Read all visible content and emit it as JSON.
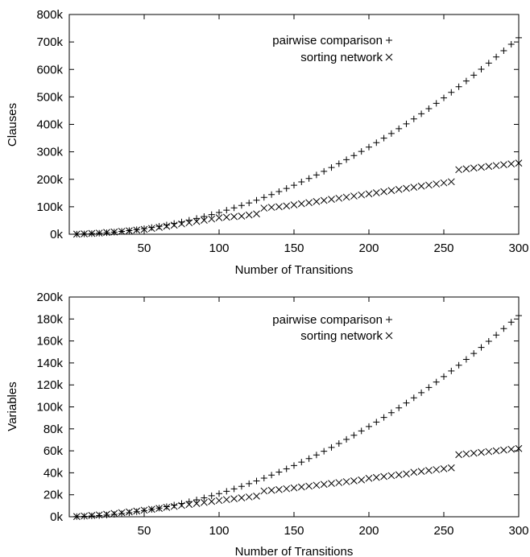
{
  "chart_data": [
    {
      "type": "scatter",
      "xlabel": "Number of Transitions",
      "ylabel": "Clauses",
      "xlim": [
        0,
        300
      ],
      "ylim": [
        0,
        800000
      ],
      "xticks": [
        50,
        100,
        150,
        200,
        250,
        300
      ],
      "xtick_labels": [
        "50",
        "100",
        "150",
        "200",
        "250",
        "300"
      ],
      "yticks": [
        0,
        100000,
        200000,
        300000,
        400000,
        500000,
        600000,
        700000,
        800000
      ],
      "ytick_labels": [
        "0k",
        "100k",
        "200k",
        "300k",
        "400k",
        "500k",
        "600k",
        "700k",
        "800k"
      ],
      "grid": false,
      "legend_position": "top-right",
      "series": [
        {
          "name": "pairwise comparison",
          "marker": "plus",
          "x": [
            5,
            10,
            15,
            20,
            25,
            30,
            35,
            40,
            45,
            50,
            55,
            60,
            65,
            70,
            75,
            80,
            85,
            90,
            95,
            100,
            105,
            110,
            115,
            120,
            125,
            130,
            135,
            140,
            145,
            150,
            155,
            160,
            165,
            170,
            175,
            180,
            185,
            190,
            195,
            200,
            205,
            210,
            215,
            220,
            225,
            230,
            235,
            240,
            245,
            250,
            255,
            260,
            265,
            270,
            275,
            280,
            285,
            290,
            295,
            300
          ],
          "y": [
            500,
            1100,
            2200,
            3700,
            5500,
            7700,
            10200,
            13200,
            16500,
            20300,
            24400,
            28900,
            33800,
            39100,
            44800,
            50900,
            57400,
            64300,
            71600,
            79300,
            87400,
            95900,
            104800,
            114100,
            123800,
            133900,
            144400,
            155300,
            166600,
            178300,
            190400,
            202900,
            215800,
            229100,
            242800,
            256900,
            271400,
            286300,
            301600,
            317300,
            333400,
            349900,
            366800,
            384100,
            401800,
            419900,
            438400,
            457300,
            476600,
            496300,
            516400,
            536900,
            557800,
            579100,
            600800,
            622900,
            645400,
            668300,
            691600,
            715300
          ]
        },
        {
          "name": "sorting network",
          "marker": "cross",
          "x": [
            5,
            10,
            15,
            20,
            25,
            30,
            35,
            40,
            45,
            50,
            55,
            60,
            65,
            70,
            75,
            80,
            85,
            90,
            95,
            100,
            105,
            110,
            115,
            120,
            125,
            130,
            135,
            140,
            145,
            150,
            155,
            160,
            165,
            170,
            175,
            180,
            185,
            190,
            195,
            200,
            205,
            210,
            215,
            220,
            225,
            230,
            235,
            240,
            245,
            250,
            255,
            260,
            265,
            270,
            275,
            280,
            285,
            290,
            295,
            300
          ],
          "y": [
            400,
            1500,
            3000,
            4200,
            6500,
            8000,
            10500,
            12500,
            15000,
            17500,
            21000,
            25000,
            29000,
            33000,
            37500,
            42000,
            46500,
            51000,
            55500,
            60000,
            62000,
            64000,
            66000,
            70000,
            74000,
            95000,
            98000,
            100000,
            103000,
            107000,
            111000,
            115000,
            119000,
            123000,
            127000,
            131000,
            135000,
            139000,
            143000,
            147000,
            151000,
            155000,
            159000,
            163000,
            167000,
            171000,
            175000,
            179000,
            183000,
            187000,
            191000,
            235000,
            238000,
            241000,
            244000,
            247000,
            250000,
            253000,
            256000,
            259000
          ]
        }
      ]
    },
    {
      "type": "scatter",
      "xlabel": "Number of Transitions",
      "ylabel": "Variables",
      "xlim": [
        0,
        300
      ],
      "ylim": [
        0,
        200000
      ],
      "xticks": [
        50,
        100,
        150,
        200,
        250,
        300
      ],
      "xtick_labels": [
        "50",
        "100",
        "150",
        "200",
        "250",
        "300"
      ],
      "yticks": [
        0,
        20000,
        40000,
        60000,
        80000,
        100000,
        120000,
        140000,
        160000,
        180000,
        200000
      ],
      "ytick_labels": [
        "0k",
        "20k",
        "40k",
        "60k",
        "80k",
        "100k",
        "120k",
        "140k",
        "160k",
        "180k",
        "200k"
      ],
      "grid": false,
      "legend_position": "top-right",
      "series": [
        {
          "name": "pairwise comparison",
          "marker": "plus",
          "x": [
            5,
            10,
            15,
            20,
            25,
            30,
            35,
            40,
            45,
            50,
            55,
            60,
            65,
            70,
            75,
            80,
            85,
            90,
            95,
            100,
            105,
            110,
            115,
            120,
            125,
            130,
            135,
            140,
            145,
            150,
            155,
            160,
            165,
            170,
            175,
            180,
            185,
            190,
            195,
            200,
            205,
            210,
            215,
            220,
            225,
            230,
            235,
            240,
            245,
            250,
            255,
            260,
            265,
            270,
            275,
            280,
            285,
            290,
            295,
            300
          ],
          "y": [
            200,
            400,
            700,
            1100,
            1600,
            2200,
            2900,
            3700,
            4600,
            5600,
            6700,
            7900,
            9200,
            10600,
            12100,
            13700,
            15400,
            17200,
            19100,
            21100,
            23200,
            25400,
            27700,
            30100,
            32600,
            35200,
            37900,
            40700,
            43600,
            46600,
            49700,
            52900,
            56200,
            59600,
            63100,
            66700,
            70400,
            74200,
            78100,
            82100,
            86200,
            90400,
            94700,
            99100,
            103600,
            108200,
            112900,
            117700,
            122600,
            127600,
            132700,
            137900,
            143200,
            148600,
            154100,
            159700,
            165400,
            171200,
            177100,
            183100
          ]
        },
        {
          "name": "sorting network",
          "marker": "cross",
          "x": [
            5,
            10,
            15,
            20,
            25,
            30,
            35,
            40,
            45,
            50,
            55,
            60,
            65,
            70,
            75,
            80,
            85,
            90,
            95,
            100,
            105,
            110,
            115,
            120,
            125,
            130,
            135,
            140,
            145,
            150,
            155,
            160,
            165,
            170,
            175,
            180,
            185,
            190,
            195,
            200,
            205,
            210,
            215,
            220,
            225,
            230,
            235,
            240,
            245,
            250,
            255,
            260,
            265,
            270,
            275,
            280,
            285,
            290,
            295,
            300
          ],
          "y": [
            200,
            700,
            1200,
            1700,
            2300,
            3000,
            3700,
            4400,
            5200,
            6000,
            6800,
            7600,
            8500,
            9400,
            10300,
            11200,
            12100,
            13000,
            13900,
            14800,
            15600,
            16400,
            17200,
            18000,
            18800,
            23500,
            24100,
            24700,
            25500,
            26300,
            27100,
            27900,
            28700,
            29500,
            30300,
            31100,
            31900,
            32700,
            33500,
            35000,
            35800,
            36600,
            37400,
            38200,
            39000,
            40500,
            41300,
            42100,
            42900,
            43700,
            44500,
            56500,
            57200,
            57900,
            58600,
            59300,
            60000,
            60700,
            61400,
            62100
          ]
        }
      ]
    }
  ]
}
